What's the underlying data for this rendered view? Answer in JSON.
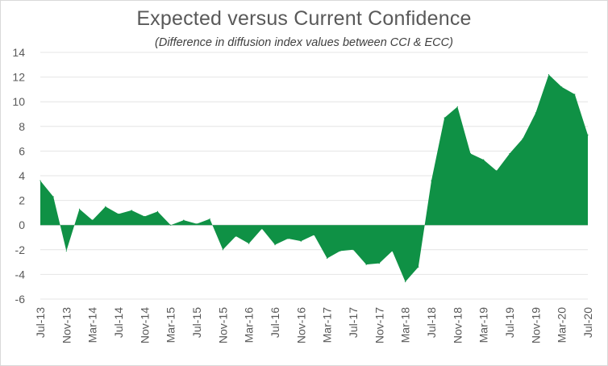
{
  "chart_data": {
    "type": "area",
    "title": "Expected versus Current Confidence",
    "subtitle": "(Difference in diffusion index values between CCI & ECC)",
    "xlabel": "",
    "ylabel": "",
    "ylim": [
      -6,
      14
    ],
    "y_ticks": [
      "14",
      "12",
      "10",
      "8",
      "6",
      "4",
      "2",
      "0",
      "-2",
      "-4",
      "-6"
    ],
    "x_tick_labels": [
      "Jul-13",
      "Nov-13",
      "Mar-14",
      "Jul-14",
      "Nov-14",
      "Mar-15",
      "Jul-15",
      "Nov-15",
      "Mar-16",
      "Jul-16",
      "Nov-16",
      "Mar-17",
      "Jul-17",
      "Nov-17",
      "Mar-18",
      "Jul-18",
      "Nov-18",
      "Mar-19",
      "Jul-19",
      "Nov-19",
      "Mar-20",
      "Jul-20"
    ],
    "grid": true,
    "legend": "none",
    "fill_color": "#0f9145",
    "series": [
      {
        "values": [
          3.6,
          2.3,
          -2.1,
          1.3,
          0.4,
          1.5,
          0.9,
          1.2,
          0.7,
          1.1,
          0.0,
          0.4,
          0.1,
          0.5,
          -2.0,
          -0.9,
          -1.5,
          -0.3,
          -1.6,
          -1.1,
          -1.3,
          -0.8,
          -2.7,
          -2.1,
          -2.0,
          -3.2,
          -3.1,
          -2.1,
          -4.6,
          -3.4,
          3.6,
          8.7,
          9.6,
          5.8,
          5.3,
          4.4,
          5.8,
          7.0,
          9.1,
          12.2,
          11.2,
          10.6,
          7.3
        ]
      }
    ]
  }
}
